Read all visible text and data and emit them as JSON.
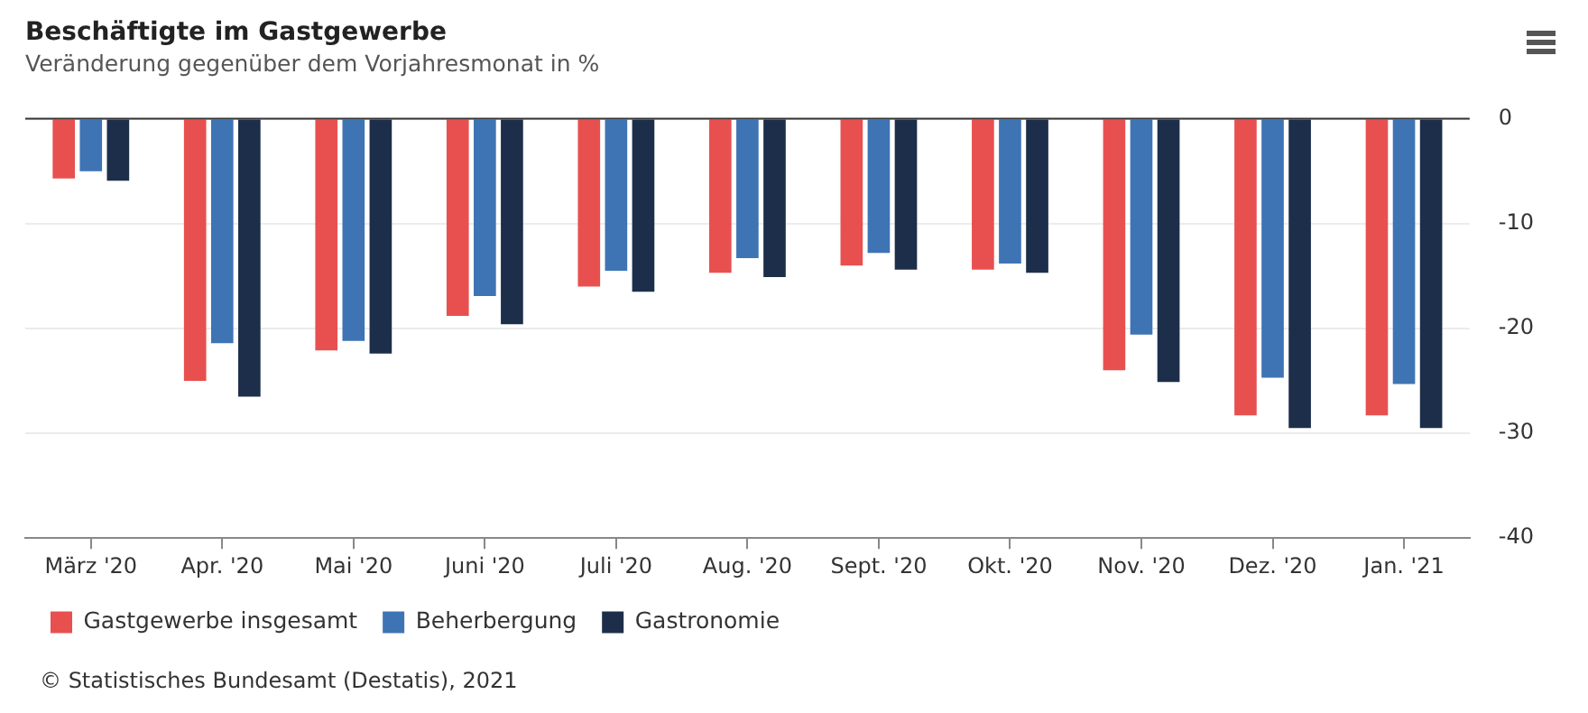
{
  "chart_data": {
    "type": "bar",
    "title": "Beschäftigte im Gastgewerbe",
    "subtitle": "Veränderung gegenüber dem Vorjahresmonat in %",
    "categories": [
      "März '20",
      "Apr. '20",
      "Mai '20",
      "Juni '20",
      "Juli '20",
      "Aug. '20",
      "Sept. '20",
      "Okt. '20",
      "Nov. '20",
      "Dez. '20",
      "Jan. '21"
    ],
    "series": [
      {
        "name": "Gastgewerbe insgesamt",
        "color": "#e8504f",
        "values": [
          -5.7,
          -25.0,
          -22.1,
          -18.8,
          -16.0,
          -14.7,
          -14.0,
          -14.4,
          -24.0,
          -28.3,
          -28.3
        ]
      },
      {
        "name": "Beherbergung",
        "color": "#3e74b4",
        "values": [
          -5.0,
          -21.4,
          -21.2,
          -16.9,
          -14.5,
          -13.3,
          -12.8,
          -13.8,
          -20.6,
          -24.7,
          -25.3
        ]
      },
      {
        "name": "Gastronomie",
        "color": "#1c2e4a",
        "values": [
          -5.9,
          -26.5,
          -22.4,
          -19.6,
          -16.5,
          -15.1,
          -14.4,
          -14.7,
          -25.1,
          -29.5,
          -29.5
        ]
      }
    ],
    "ylim": [
      -40,
      0
    ],
    "yticks": [
      -40,
      -30,
      -20,
      -10,
      0
    ],
    "grid": "y",
    "legend": "bottom left",
    "ref_lines": [
      {
        "axis": "y",
        "value": 0,
        "color": "#333333"
      }
    ],
    "annotations": [
      "© Statistisches Bundesamt (Destatis), 2021"
    ]
  }
}
